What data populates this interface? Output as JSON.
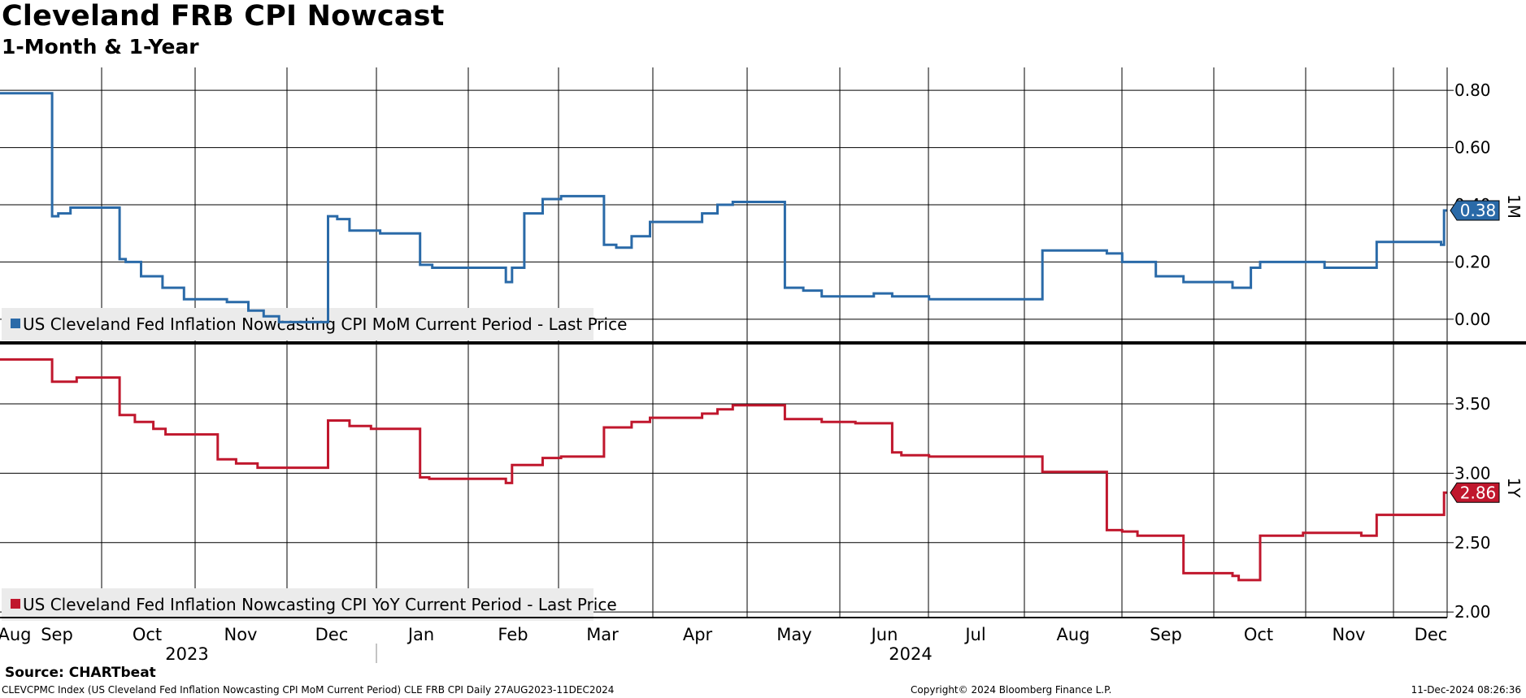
{
  "title": "Cleveland FRB CPI Nowcast",
  "subtitle": "1-Month & 1-Year",
  "source": "Source: CHARTbeat",
  "footer": {
    "left": "CLEVCPMC Index (US Cleveland Fed Inflation Nowcasting CPI MoM Current Period) CLE FRB CPI  Daily 27AUG2023-11DEC2024",
    "middle": "Copyright© 2024 Bloomberg Finance L.P.",
    "right": "11-Dec-2024 08:26:36"
  },
  "colors": {
    "mom": "#2a6aa8",
    "yoy": "#c0172d",
    "grid": "#000000",
    "legend_bg": "#ebebeb"
  },
  "chart_data": {
    "type": "line",
    "x_axis": {
      "tick_labels": [
        "Aug",
        "Sep",
        "Oct",
        "Nov",
        "Dec",
        "Jan",
        "Feb",
        "Mar",
        "Apr",
        "May",
        "Jun",
        "Jul",
        "Aug",
        "Sep",
        "Oct",
        "Nov",
        "Dec"
      ],
      "year_labels": [
        "2023",
        "2024"
      ],
      "range": [
        "2023-08-27",
        "2024-12-11"
      ]
    },
    "panels": [
      {
        "id": "mom",
        "axis_tag": "1M",
        "legend": "US Cleveland Fed Inflation Nowcasting CPI MoM Current Period - Last Price",
        "color": "#2a6aa8",
        "ylim": [
          -0.08,
          0.88
        ],
        "yticks": [
          "0.80",
          "0.60",
          "0.40",
          "0.20",
          "0.00"
        ],
        "last_value": "0.38",
        "series": {
          "name": "US Cleveland Fed Inflation Nowcasting CPI MoM Current Period",
          "x": [
            "2023-08-27",
            "2023-09-13",
            "2023-09-15",
            "2023-09-19",
            "2023-10-05",
            "2023-10-07",
            "2023-10-12",
            "2023-10-19",
            "2023-10-26",
            "2023-11-09",
            "2023-11-16",
            "2023-11-21",
            "2023-11-26",
            "2023-12-12",
            "2023-12-15",
            "2023-12-19",
            "2023-12-29",
            "2024-01-11",
            "2024-01-15",
            "2024-01-20",
            "2024-02-08",
            "2024-02-10",
            "2024-02-14",
            "2024-02-20",
            "2024-02-26",
            "2024-03-11",
            "2024-03-15",
            "2024-03-20",
            "2024-03-26",
            "2024-04-09",
            "2024-04-12",
            "2024-04-17",
            "2024-04-22",
            "2024-05-07",
            "2024-05-09",
            "2024-05-15",
            "2024-05-21",
            "2024-06-01",
            "2024-06-07",
            "2024-06-13",
            "2024-06-16",
            "2024-06-25",
            "2024-06-26",
            "2024-08-01",
            "2024-08-08",
            "2024-08-22",
            "2024-08-27",
            "2024-09-01",
            "2024-09-07",
            "2024-09-16",
            "2024-10-02",
            "2024-10-04",
            "2024-10-08",
            "2024-10-11",
            "2024-10-25",
            "2024-11-01",
            "2024-11-13",
            "2024-11-18",
            "2024-12-09",
            "2024-12-10"
          ],
          "y": [
            0.79,
            0.36,
            0.37,
            0.39,
            0.21,
            0.2,
            0.15,
            0.11,
            0.07,
            0.06,
            0.03,
            0.01,
            -0.01,
            0.36,
            0.35,
            0.31,
            0.3,
            0.19,
            0.18,
            0.18,
            0.13,
            0.18,
            0.37,
            0.42,
            0.43,
            0.26,
            0.25,
            0.29,
            0.34,
            0.34,
            0.37,
            0.4,
            0.41,
            0.41,
            0.11,
            0.1,
            0.08,
            0.08,
            0.09,
            0.08,
            0.08,
            0.07,
            0.07,
            0.24,
            0.24,
            0.23,
            0.2,
            0.2,
            0.15,
            0.13,
            0.11,
            0.11,
            0.18,
            0.2,
            0.2,
            0.18,
            0.18,
            0.27,
            0.26,
            0.38
          ]
        }
      },
      {
        "id": "yoy",
        "axis_tag": "1Y",
        "legend": "US Cleveland Fed Inflation Nowcasting CPI YoY Current Period - Last Price",
        "color": "#c0172d",
        "ylim": [
          1.96,
          3.91
        ],
        "yticks": [
          "3.50",
          "3.00",
          "2.50",
          "2.00"
        ],
        "last_value": "2.86",
        "series": {
          "name": "US Cleveland Fed Inflation Nowcasting CPI YoY Current Period",
          "x": [
            "2023-08-27",
            "2023-09-13",
            "2023-09-17",
            "2023-09-21",
            "2023-10-05",
            "2023-10-07",
            "2023-10-10",
            "2023-10-16",
            "2023-10-20",
            "2023-11-06",
            "2023-11-12",
            "2023-11-19",
            "2023-12-12",
            "2023-12-15",
            "2023-12-19",
            "2023-12-26",
            "2024-01-11",
            "2024-01-14",
            "2024-01-20",
            "2024-02-08",
            "2024-02-10",
            "2024-02-14",
            "2024-02-20",
            "2024-02-26",
            "2024-03-11",
            "2024-03-15",
            "2024-03-20",
            "2024-03-26",
            "2024-04-09",
            "2024-04-12",
            "2024-04-17",
            "2024-04-22",
            "2024-05-07",
            "2024-05-09",
            "2024-05-15",
            "2024-05-21",
            "2024-06-01",
            "2024-06-07",
            "2024-06-13",
            "2024-06-16",
            "2024-06-25",
            "2024-06-26",
            "2024-08-01",
            "2024-08-08",
            "2024-08-22",
            "2024-08-27",
            "2024-09-01",
            "2024-09-07",
            "2024-09-16",
            "2024-10-02",
            "2024-10-04",
            "2024-10-08",
            "2024-10-11",
            "2024-10-25",
            "2024-11-01",
            "2024-11-13",
            "2024-11-18",
            "2024-12-09",
            "2024-12-10"
          ],
          "y": [
            3.82,
            3.66,
            3.66,
            3.69,
            3.42,
            3.42,
            3.37,
            3.32,
            3.28,
            3.1,
            3.07,
            3.04,
            3.38,
            3.38,
            3.34,
            3.32,
            2.97,
            2.96,
            2.96,
            2.93,
            3.06,
            3.06,
            3.11,
            3.12,
            3.33,
            3.33,
            3.37,
            3.4,
            3.4,
            3.43,
            3.46,
            3.49,
            3.49,
            3.39,
            3.39,
            3.37,
            3.36,
            3.36,
            3.15,
            3.13,
            3.12,
            3.12,
            3.01,
            3.01,
            2.59,
            2.58,
            2.55,
            2.55,
            2.28,
            2.26,
            2.23,
            2.23,
            2.55,
            2.57,
            2.57,
            2.55,
            2.7,
            2.7,
            2.86
          ]
        }
      }
    ]
  }
}
